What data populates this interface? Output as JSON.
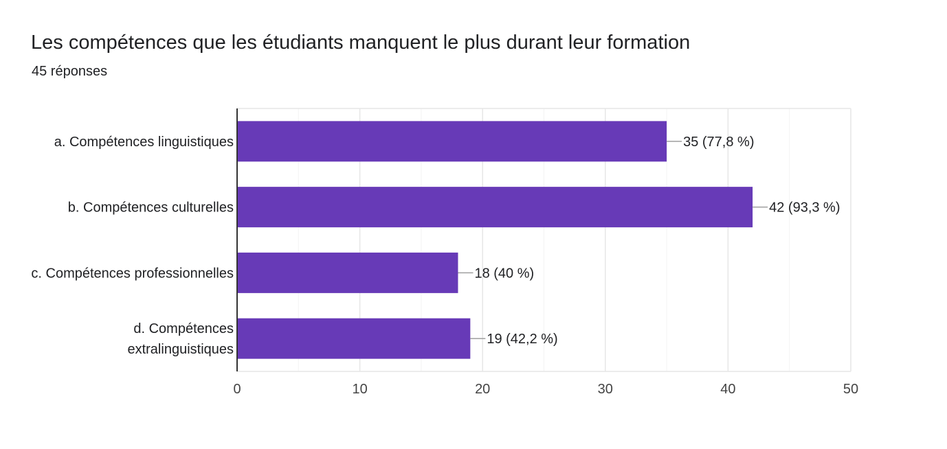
{
  "chart_data": {
    "type": "bar",
    "orientation": "horizontal",
    "title": "Les compétences que les étudiants manquent le plus durant leur formation",
    "subtitle": "45 réponses",
    "categories": [
      [
        "a. Compétences linguistiques"
      ],
      [
        "b. Compétences culturelles"
      ],
      [
        "c. Compétences professionnelles"
      ],
      [
        "d. Compétences",
        "extralinguistiques"
      ]
    ],
    "values": [
      35,
      42,
      18,
      19
    ],
    "value_labels": [
      "35 (77,8 %)",
      "42 (93,3 %)",
      "18 (40 %)",
      "19 (42,2 %)"
    ],
    "xlim": [
      0,
      50
    ],
    "xticks": [
      0,
      10,
      20,
      30,
      40,
      50
    ],
    "grid": true,
    "bar_color": "#673ab7"
  }
}
